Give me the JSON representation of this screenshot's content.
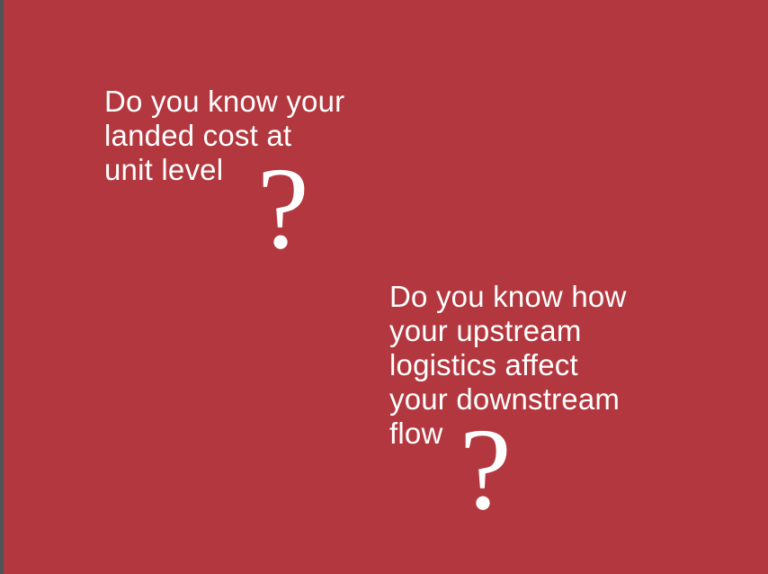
{
  "slide": {
    "background_color": "#b3373e",
    "edge_color": "#4e5358",
    "text_color": "#ffffff",
    "questions": [
      {
        "lines": [
          "Do you know your",
          "landed cost at",
          "unit level"
        ],
        "mark": "?"
      },
      {
        "lines": [
          "Do you know how",
          "your upstream",
          "logistics affect",
          "your downstream",
          "flow"
        ],
        "mark": "?"
      }
    ]
  }
}
